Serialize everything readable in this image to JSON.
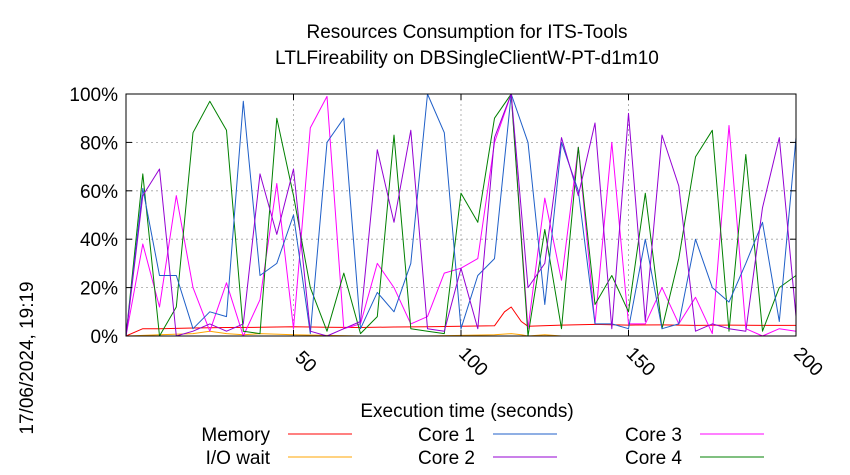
{
  "chart_data": {
    "type": "line",
    "title": "Resources Consumption for ITS-Tools",
    "subtitle": "LTLFireability on DBSingleClientW-PT-d1m10",
    "xlabel": "Execution time (seconds)",
    "ylabel": "",
    "xlim": [
      0,
      200
    ],
    "ylim": [
      0,
      100
    ],
    "xticks": [
      50,
      100,
      150,
      200
    ],
    "yticks": [
      0,
      20,
      40,
      60,
      80,
      100
    ],
    "ytick_labels": [
      "0%",
      "20%",
      "40%",
      "60%",
      "80%",
      "100%"
    ],
    "grid": true,
    "legend_position": "bottom",
    "timestamp": "17/06/2024, 19:19",
    "series": [
      {
        "name": "Memory",
        "color": "#ff0000",
        "x": [
          0,
          5,
          10,
          20,
          30,
          40,
          50,
          60,
          70,
          80,
          90,
          100,
          110,
          113,
          115,
          118,
          120,
          130,
          140,
          150,
          160,
          170,
          180,
          190,
          200
        ],
        "y": [
          0,
          3,
          3,
          3.3,
          3.5,
          3.6,
          3.8,
          3.6,
          3.5,
          3.7,
          3.8,
          4,
          4.2,
          10,
          12,
          6,
          4,
          4.5,
          4.8,
          4.5,
          4.6,
          4.4,
          4.5,
          4.4,
          4.4
        ]
      },
      {
        "name": "I/O wait",
        "color": "#ffa500",
        "x": [
          0,
          10,
          20,
          25,
          30,
          35,
          40,
          50,
          70,
          90,
          110,
          115,
          118,
          120,
          125,
          130,
          150,
          170,
          200
        ],
        "y": [
          0,
          0.5,
          1,
          2,
          1,
          0.5,
          1,
          0.5,
          0,
          0,
          0.5,
          1,
          0.5,
          0,
          0.5,
          0,
          0,
          0,
          0
        ]
      },
      {
        "name": "Core 1",
        "color": "#1f5fc8",
        "x": [
          0,
          5,
          10,
          15,
          20,
          25,
          30,
          35,
          40,
          45,
          50,
          55,
          60,
          65,
          70,
          75,
          80,
          85,
          90,
          95,
          100,
          105,
          110,
          115,
          120,
          125,
          130,
          135,
          140,
          145,
          150,
          155,
          160,
          165,
          170,
          175,
          180,
          185,
          190,
          195,
          200
        ],
        "y": [
          0,
          61,
          25,
          25,
          3,
          10,
          8,
          97,
          25,
          30,
          50,
          1,
          80,
          90,
          3,
          18,
          10,
          30,
          100,
          84,
          3,
          25,
          32,
          100,
          80,
          13,
          80,
          60,
          5,
          5,
          3,
          40,
          3,
          5,
          40,
          20,
          14,
          30,
          47,
          6,
          82
        ]
      },
      {
        "name": "Core 2",
        "color": "#9400d3",
        "x": [
          0,
          5,
          10,
          15,
          20,
          25,
          30,
          35,
          40,
          45,
          50,
          55,
          60,
          65,
          70,
          75,
          80,
          85,
          90,
          95,
          100,
          105,
          110,
          115,
          120,
          125,
          130,
          135,
          140,
          145,
          150,
          155,
          160,
          165,
          170,
          175,
          180,
          185,
          190,
          195,
          200
        ],
        "y": [
          0,
          58,
          69,
          0,
          2,
          5,
          2,
          5,
          67,
          42,
          69,
          2,
          0,
          3,
          6,
          77,
          47,
          85,
          3,
          2,
          28,
          3,
          82,
          100,
          20,
          30,
          82,
          58,
          88,
          3,
          92,
          6,
          83,
          62,
          2,
          5,
          3,
          2,
          53,
          82,
          8
        ]
      },
      {
        "name": "Core 3",
        "color": "#ff00ff",
        "x": [
          0,
          5,
          10,
          15,
          20,
          25,
          30,
          35,
          40,
          45,
          50,
          55,
          60,
          65,
          70,
          75,
          80,
          85,
          90,
          95,
          100,
          105,
          110,
          115,
          120,
          125,
          130,
          135,
          140,
          145,
          150,
          155,
          160,
          165,
          170,
          175,
          180,
          185,
          190,
          195,
          200
        ],
        "y": [
          0,
          38,
          12,
          58,
          20,
          2,
          22,
          0,
          15,
          63,
          3,
          86,
          99,
          3,
          5,
          30,
          20,
          5,
          8,
          26,
          28,
          32,
          80,
          100,
          3,
          57,
          23,
          78,
          5,
          80,
          5,
          5,
          20,
          5,
          16,
          1,
          87,
          3,
          0,
          3,
          2
        ]
      },
      {
        "name": "Core 4",
        "color": "#008000",
        "x": [
          0,
          5,
          10,
          15,
          20,
          25,
          30,
          35,
          40,
          45,
          50,
          55,
          60,
          65,
          70,
          75,
          80,
          85,
          90,
          95,
          100,
          105,
          110,
          115,
          120,
          125,
          130,
          135,
          140,
          145,
          150,
          155,
          160,
          165,
          170,
          175,
          180,
          185,
          190,
          195,
          200
        ],
        "y": [
          0,
          67,
          0,
          12,
          84,
          97,
          85,
          2,
          1,
          90,
          58,
          20,
          2,
          26,
          1,
          8,
          83,
          3,
          2,
          1,
          59,
          47,
          90,
          100,
          0,
          44,
          3,
          78,
          13,
          25,
          10,
          59,
          3,
          32,
          74,
          85,
          2,
          75,
          2,
          20,
          25
        ]
      }
    ]
  }
}
